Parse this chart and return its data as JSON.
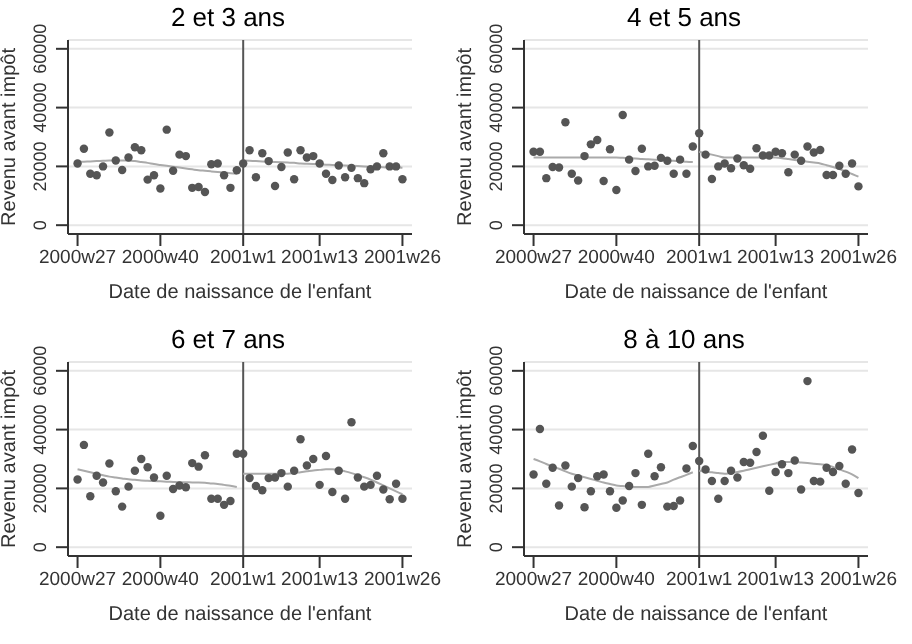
{
  "chart_data": [
    {
      "type": "scatter",
      "title": "2 et 3 ans",
      "xlabel": "Date de naissance de l'enfant",
      "ylabel": "Revenu avant impôt",
      "ylim": [
        -3000,
        63000
      ],
      "yticks": [
        0,
        20000,
        40000,
        60000
      ],
      "grid": "y",
      "ref_lines": [
        {
          "axis": "x",
          "value": "2001w1",
          "color": "#555555"
        }
      ],
      "categories": [
        "2000w27",
        null,
        null,
        null,
        null,
        null,
        null,
        null,
        null,
        null,
        null,
        null,
        null,
        "2000w40",
        null,
        null,
        null,
        null,
        null,
        null,
        null,
        null,
        null,
        null,
        null,
        null,
        "2001w1",
        null,
        null,
        null,
        null,
        null,
        null,
        null,
        null,
        null,
        null,
        null,
        "2001w13",
        null,
        null,
        null,
        null,
        null,
        null,
        null,
        null,
        null,
        null,
        null,
        null,
        "2001w26"
      ],
      "series": [
        {
          "type": "scatter",
          "marker": "circle",
          "color": "#555555",
          "values": [
            21000,
            26000,
            17500,
            17000,
            20000,
            31500,
            22000,
            18800,
            23000,
            26500,
            25500,
            15500,
            17000,
            12500,
            32500,
            18500,
            24000,
            23500,
            12700,
            13000,
            11300,
            20700,
            21000,
            17000,
            12700,
            18700,
            21000,
            25500,
            16300,
            24500,
            21800,
            13300,
            19800,
            24700,
            15600,
            25500,
            23000,
            23500,
            21000,
            17500,
            15400,
            20300,
            16300,
            19500,
            16000,
            14300,
            19000,
            20000,
            24500,
            20000,
            20000,
            15600
          ]
        },
        {
          "type": "line",
          "color": "#aaaaaa",
          "line_style": "solid",
          "values": [
            21500,
            21600,
            21700,
            21800,
            21900,
            22000,
            22000,
            22000,
            22000,
            21800,
            21500,
            21200,
            20800,
            20500,
            20200,
            19900,
            19600,
            19300,
            19000,
            18700,
            18500,
            18300,
            18100,
            17900,
            17700,
            17500,
            null,
            null,
            null,
            null,
            null,
            null,
            null,
            null,
            null,
            null,
            null,
            null,
            null,
            null,
            null,
            null,
            null,
            null,
            null,
            null,
            null,
            null,
            null,
            null,
            null,
            null
          ]
        },
        {
          "type": "line",
          "color": "#aaaaaa",
          "line_style": "solid",
          "values": [
            null,
            null,
            null,
            null,
            null,
            null,
            null,
            null,
            null,
            null,
            null,
            null,
            null,
            null,
            null,
            null,
            null,
            null,
            null,
            null,
            null,
            null,
            null,
            null,
            null,
            null,
            22000,
            21900,
            21800,
            21700,
            21600,
            21500,
            21400,
            21300,
            21200,
            21000,
            20900,
            20800,
            20700,
            20600,
            20500,
            20400,
            20300,
            20200,
            20100,
            20000,
            19900,
            19800,
            19700,
            19600,
            19600,
            19500
          ]
        }
      ]
    },
    {
      "type": "scatter",
      "title": "4 et 5 ans",
      "xlabel": "Date de naissance de l'enfant",
      "ylabel": "Revenu avant impôt",
      "ylim": [
        -3000,
        63000
      ],
      "yticks": [
        0,
        20000,
        40000,
        60000
      ],
      "grid": "y",
      "ref_lines": [
        {
          "axis": "x",
          "value": "2001w1",
          "color": "#555555"
        }
      ],
      "categories": [
        "2000w27",
        null,
        null,
        null,
        null,
        null,
        null,
        null,
        null,
        null,
        null,
        null,
        null,
        "2000w40",
        null,
        null,
        null,
        null,
        null,
        null,
        null,
        null,
        null,
        null,
        null,
        null,
        "2001w1",
        null,
        null,
        null,
        null,
        null,
        null,
        null,
        null,
        null,
        null,
        null,
        "2001w13",
        null,
        null,
        null,
        null,
        null,
        null,
        null,
        null,
        null,
        null,
        null,
        null,
        "2001w26"
      ],
      "series": [
        {
          "type": "scatter",
          "marker": "circle",
          "color": "#555555",
          "values": [
            25000,
            25000,
            16000,
            19800,
            19600,
            35000,
            17500,
            15200,
            23500,
            27500,
            29000,
            15000,
            25800,
            12000,
            37500,
            22300,
            18400,
            26000,
            20000,
            20200,
            22900,
            21900,
            17500,
            22300,
            17500,
            26800,
            31300,
            24000,
            15700,
            20000,
            21000,
            19400,
            22700,
            20400,
            19200,
            26200,
            23700,
            23700,
            25000,
            24500,
            18000,
            24000,
            21900,
            26800,
            24700,
            25600,
            17100,
            17100,
            20200,
            17500,
            21000,
            13200
          ]
        },
        {
          "type": "line",
          "color": "#aaaaaa",
          "line_style": "solid",
          "values": [
            23000,
            23000,
            23000,
            23000,
            23000,
            23000,
            23000,
            23000,
            23000,
            23000,
            23000,
            23000,
            23000,
            23000,
            22900,
            22800,
            22700,
            22500,
            22400,
            22300,
            22200,
            22000,
            21900,
            21800,
            21600,
            21500,
            null,
            null,
            null,
            null,
            null,
            null,
            null,
            null,
            null,
            null,
            null,
            null,
            null,
            null,
            null,
            null,
            null,
            null,
            null,
            null,
            null,
            null,
            null,
            null,
            null,
            null
          ]
        },
        {
          "type": "line",
          "color": "#aaaaaa",
          "line_style": "solid",
          "values": [
            null,
            null,
            null,
            null,
            null,
            null,
            null,
            null,
            null,
            null,
            null,
            null,
            null,
            null,
            null,
            null,
            null,
            null,
            null,
            null,
            null,
            null,
            null,
            null,
            null,
            null,
            25000,
            24500,
            24000,
            23500,
            23000,
            23000,
            23000,
            23000,
            23000,
            23000,
            23000,
            23000,
            23000,
            22800,
            22500,
            22200,
            21900,
            21600,
            21300,
            21000,
            20400,
            19800,
            19100,
            18300,
            17400,
            16500
          ]
        }
      ]
    },
    {
      "type": "scatter",
      "title": "6 et 7 ans",
      "xlabel": "Date de naissance de l'enfant",
      "ylabel": "Revenu avant impôt",
      "ylim": [
        -3000,
        63000
      ],
      "yticks": [
        0,
        20000,
        40000,
        60000
      ],
      "grid": "y",
      "ref_lines": [
        {
          "axis": "x",
          "value": "2001w1",
          "color": "#555555"
        }
      ],
      "categories": [
        "2000w27",
        null,
        null,
        null,
        null,
        null,
        null,
        null,
        null,
        null,
        null,
        null,
        null,
        "2000w40",
        null,
        null,
        null,
        null,
        null,
        null,
        null,
        null,
        null,
        null,
        null,
        null,
        "2001w1",
        null,
        null,
        null,
        null,
        null,
        null,
        null,
        null,
        null,
        null,
        null,
        "2001w13",
        null,
        null,
        null,
        null,
        null,
        null,
        null,
        null,
        null,
        null,
        null,
        null,
        "2001w26"
      ],
      "series": [
        {
          "type": "scatter",
          "marker": "circle",
          "color": "#555555",
          "values": [
            23000,
            34800,
            17300,
            24300,
            22000,
            28500,
            19000,
            13800,
            20600,
            26000,
            30000,
            27200,
            23700,
            10700,
            24300,
            19800,
            21000,
            20400,
            28600,
            27400,
            31300,
            16500,
            16500,
            14400,
            15700,
            31800,
            31800,
            23500,
            20800,
            19400,
            23500,
            23700,
            25200,
            20600,
            26000,
            36700,
            27800,
            30000,
            21200,
            31000,
            18800,
            26000,
            16500,
            42500,
            23700,
            20600,
            21200,
            24300,
            19600,
            16300,
            21600,
            16500
          ]
        },
        {
          "type": "line",
          "color": "#aaaaaa",
          "line_style": "solid",
          "values": [
            26500,
            26000,
            25500,
            25000,
            24500,
            24000,
            23700,
            23400,
            23100,
            22900,
            22700,
            22600,
            22500,
            22400,
            22300,
            22200,
            22100,
            22100,
            22000,
            22000,
            21900,
            21700,
            21500,
            21200,
            20900,
            20500,
            null,
            null,
            null,
            null,
            null,
            null,
            null,
            null,
            null,
            null,
            null,
            null,
            null,
            null,
            null,
            null,
            null,
            null,
            null,
            null,
            null,
            null,
            null,
            null,
            null,
            null
          ]
        },
        {
          "type": "line",
          "color": "#aaaaaa",
          "line_style": "solid",
          "values": [
            null,
            null,
            null,
            null,
            null,
            null,
            null,
            null,
            null,
            null,
            null,
            null,
            null,
            null,
            null,
            null,
            null,
            null,
            null,
            null,
            null,
            null,
            null,
            null,
            null,
            null,
            25000,
            25000,
            25000,
            25000,
            25000,
            25000,
            25000,
            25000,
            25200,
            25500,
            25800,
            26100,
            26300,
            26500,
            26500,
            26300,
            25800,
            25200,
            24500,
            23800,
            23000,
            22000,
            21000,
            20000,
            19000,
            18000
          ]
        }
      ]
    },
    {
      "type": "scatter",
      "title": "8 à 10 ans",
      "xlabel": "Date de naissance de l'enfant",
      "ylabel": "Revenu avant impôt",
      "ylim": [
        -3000,
        63000
      ],
      "yticks": [
        0,
        20000,
        40000,
        60000
      ],
      "grid": "y",
      "ref_lines": [
        {
          "axis": "x",
          "value": "2001w1",
          "color": "#555555"
        }
      ],
      "categories": [
        "2000w27",
        null,
        null,
        null,
        null,
        null,
        null,
        null,
        null,
        null,
        null,
        null,
        null,
        "2000w40",
        null,
        null,
        null,
        null,
        null,
        null,
        null,
        null,
        null,
        null,
        null,
        null,
        "2001w1",
        null,
        null,
        null,
        null,
        null,
        null,
        null,
        null,
        null,
        null,
        null,
        "2001w13",
        null,
        null,
        null,
        null,
        null,
        null,
        null,
        null,
        null,
        null,
        null,
        null,
        "2001w26"
      ],
      "series": [
        {
          "type": "scatter",
          "marker": "circle",
          "color": "#555555",
          "values": [
            24700,
            40200,
            21600,
            27000,
            14200,
            27800,
            20600,
            23500,
            13600,
            19000,
            24100,
            24700,
            19000,
            13400,
            15900,
            20800,
            25200,
            14400,
            31800,
            24100,
            27200,
            13800,
            14000,
            15900,
            26800,
            34400,
            29300,
            26400,
            22500,
            16500,
            22500,
            26000,
            23700,
            29000,
            28700,
            32400,
            37900,
            19200,
            25600,
            28200,
            25200,
            29500,
            19600,
            56500,
            22500,
            22300,
            27000,
            25600,
            27600,
            21600,
            33200,
            18400
          ]
        },
        {
          "type": "line",
          "color": "#aaaaaa",
          "line_style": "solid",
          "values": [
            30000,
            29200,
            28300,
            27500,
            26700,
            25800,
            25000,
            24400,
            23800,
            23200,
            22600,
            22000,
            21500,
            21000,
            20800,
            20600,
            20500,
            20500,
            20500,
            21000,
            21500,
            22000,
            23000,
            23800,
            24600,
            25500,
            null,
            null,
            null,
            null,
            null,
            null,
            null,
            null,
            null,
            null,
            null,
            null,
            null,
            null,
            null,
            null,
            null,
            null,
            null,
            null,
            null,
            null,
            null,
            null,
            null,
            null
          ]
        },
        {
          "type": "line",
          "color": "#aaaaaa",
          "line_style": "solid",
          "values": [
            null,
            null,
            null,
            null,
            null,
            null,
            null,
            null,
            null,
            null,
            null,
            null,
            null,
            null,
            null,
            null,
            null,
            null,
            null,
            null,
            null,
            null,
            null,
            null,
            null,
            null,
            26000,
            25700,
            25500,
            25200,
            25000,
            25300,
            25600,
            26000,
            26500,
            27000,
            27500,
            28000,
            28500,
            29000,
            29000,
            29000,
            28800,
            28600,
            28400,
            28200,
            28000,
            27300,
            26500,
            25700,
            24800,
            23500
          ]
        }
      ]
    }
  ]
}
